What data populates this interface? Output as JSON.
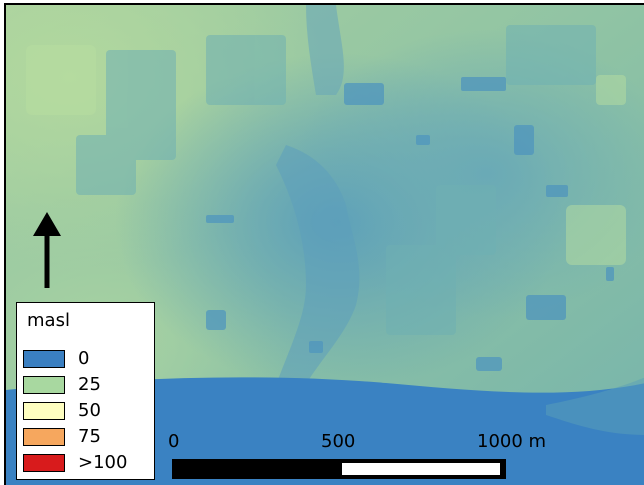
{
  "map": {
    "colors": {
      "base_green": "#a6cfa0",
      "low_blue": "#3f86c2",
      "river_blue": "#3a82c2"
    }
  },
  "north_arrow": {
    "icon": "north-arrow-icon"
  },
  "legend": {
    "title": "masl",
    "items": [
      {
        "label": "0",
        "color": "#3a7fc1"
      },
      {
        "label": "25",
        "color": "#a8d8a0"
      },
      {
        "label": "50",
        "color": "#fefec0"
      },
      {
        "label": "75",
        "color": "#f6a75e"
      },
      {
        "label": ">100",
        "color": "#d81b1c"
      }
    ]
  },
  "scale_bar": {
    "label_start": "0",
    "label_mid": "500",
    "label_end": "1000 m"
  }
}
